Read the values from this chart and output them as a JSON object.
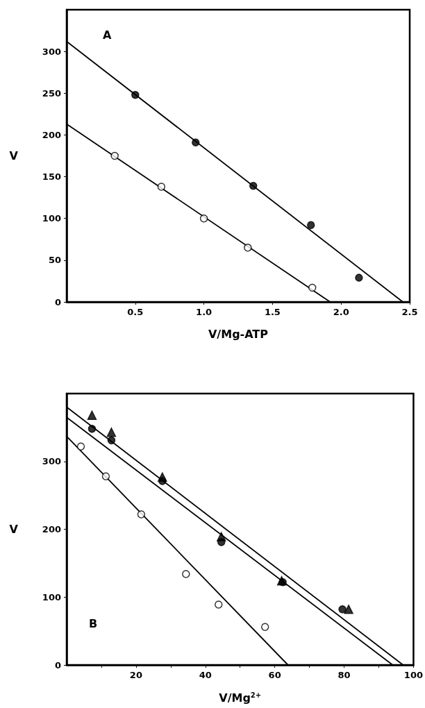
{
  "chart_data": [
    {
      "type": "scatter",
      "xlabel": "V/Mg-ATP",
      "ylabel": "V",
      "annotations": [
        "A"
      ],
      "xlim": [
        0,
        2.5
      ],
      "ylim": [
        0,
        350
      ],
      "xticks": [
        0.5,
        {
          "value": 1,
          "label": "1.0"
        },
        1.5,
        {
          "value": 2,
          "label": "2.0"
        },
        2.5
      ],
      "yticks": [
        0,
        50,
        100,
        150,
        200,
        250,
        300
      ],
      "grid": false,
      "series": [
        {
          "marker": "circle",
          "color": "#000000",
          "x": [
            0.5,
            0.94,
            1.36,
            1.78,
            2.13
          ],
          "values": [
            248,
            191,
            139,
            92,
            29
          ]
        },
        {
          "marker": "circle",
          "color": "#ffffff",
          "x": [
            0.35,
            0.69,
            1.0,
            1.32,
            1.79
          ],
          "values": [
            175,
            138,
            100,
            65,
            17
          ]
        },
        {
          "type": "line",
          "marker": "none",
          "color": "#000000",
          "x": [
            0,
            2.45
          ],
          "values": [
            312,
            0
          ]
        },
        {
          "type": "line",
          "marker": "none",
          "color": "#000000",
          "x": [
            0,
            1.92
          ],
          "values": [
            213,
            0
          ]
        }
      ]
    },
    {
      "type": "scatter",
      "xlabel": "V/Mg$^{2+}$",
      "ylabel": "V",
      "annotations": [
        "B"
      ],
      "xlim": [
        0,
        100
      ],
      "ylim": [
        0,
        400
      ],
      "xticks": [
        {
          "value": 10,
          "label": null
        },
        20,
        {
          "value": 30,
          "label": null
        },
        40,
        {
          "value": 50,
          "label": null
        },
        60,
        {
          "value": 70,
          "label": null
        },
        80,
        {
          "value": 90,
          "label": null
        },
        100
      ],
      "yticks": [
        0,
        100,
        200,
        300
      ],
      "grid": false,
      "series": [
        {
          "marker": "triangle",
          "color": "#000000",
          "x": [
            7.3,
            12.9,
            27.6,
            44.6,
            62,
            81.3
          ],
          "values": [
            368,
            343,
            277,
            189,
            124,
            82
          ]
        },
        {
          "marker": "circle",
          "color": "#000000",
          "x": [
            7.3,
            12.9,
            27.6,
            44.6,
            62.3,
            79.5
          ],
          "values": [
            348,
            331,
            271,
            181,
            122,
            82
          ]
        },
        {
          "marker": "circle",
          "color": "#ffffff",
          "x": [
            4.1,
            11.3,
            21.5,
            34.4,
            43.8,
            57.2
          ],
          "values": [
            322,
            278,
            222,
            134,
            89,
            56
          ]
        },
        {
          "type": "line",
          "marker": "none",
          "color": "#000000",
          "x": [
            0,
            97
          ],
          "values": [
            380,
            0
          ]
        },
        {
          "type": "line",
          "marker": "none",
          "color": "#000000",
          "x": [
            0,
            94
          ],
          "values": [
            365,
            0
          ]
        },
        {
          "type": "line",
          "marker": "none",
          "color": "#000000",
          "x": [
            0,
            63.8
          ],
          "values": [
            337,
            0
          ]
        }
      ]
    }
  ]
}
